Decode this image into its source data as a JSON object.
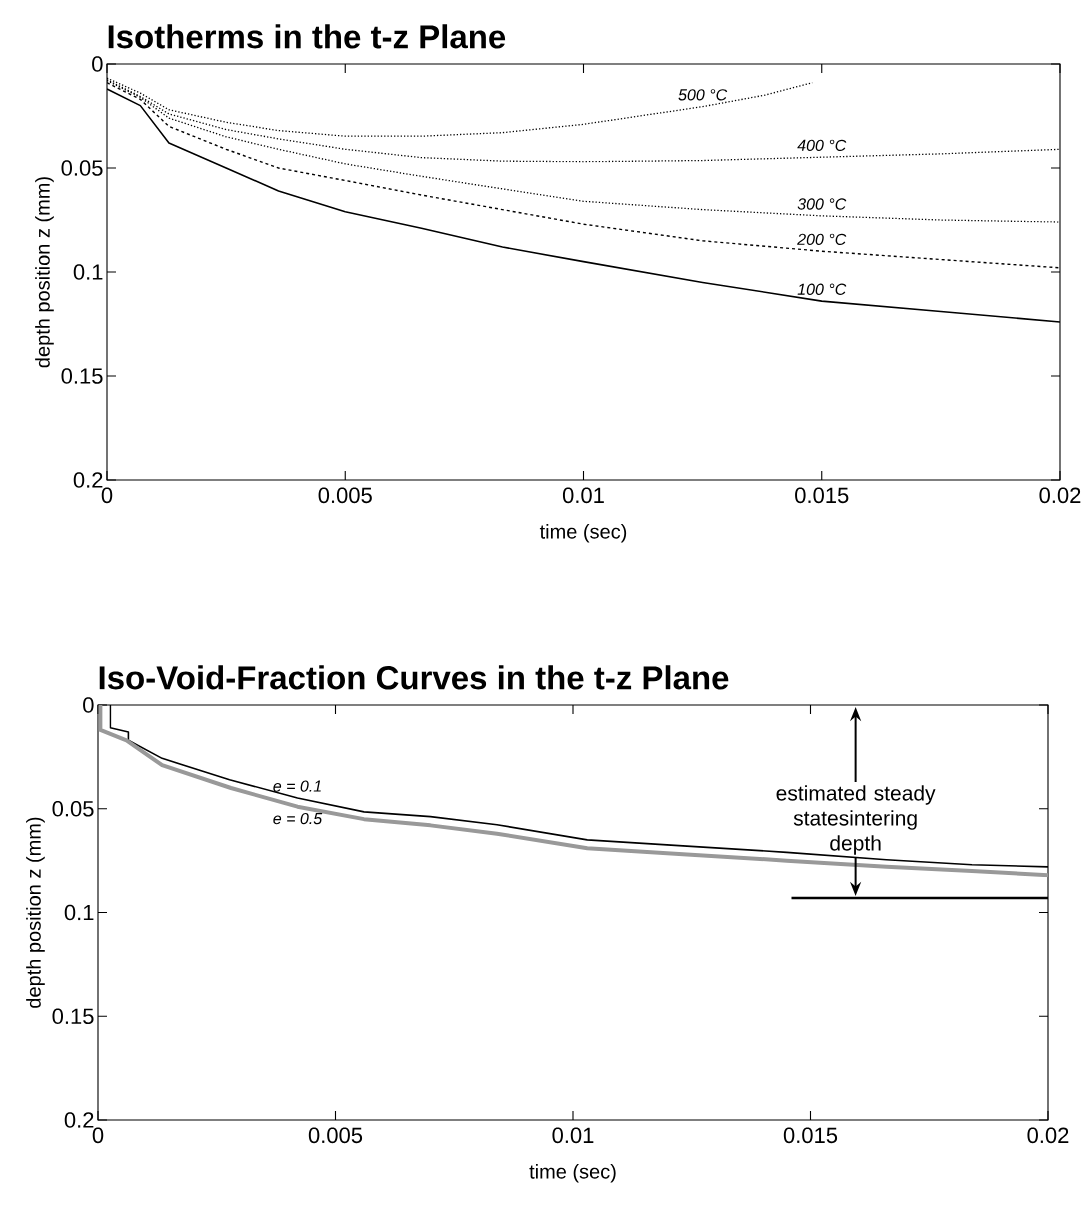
{
  "chart_data": [
    {
      "type": "line",
      "title": "Isotherms in the t-z Plane",
      "xlabel": "time (sec)",
      "ylabel": "depth position z (mm)",
      "xlim": [
        0,
        0.02
      ],
      "ylim": [
        0.2,
        0
      ],
      "xticks": [
        0,
        0.005,
        0.01,
        0.015,
        0.02
      ],
      "yticks": [
        0,
        0.05,
        0.1,
        0.15,
        0.2
      ],
      "series": [
        {
          "name": "100 °C",
          "color": "#000000",
          "line_style": "solid",
          "x": [
            0,
            0.0007,
            0.0013,
            0.0025,
            0.0036,
            0.005,
            0.0066,
            0.0083,
            0.01,
            0.0125,
            0.015,
            0.0175,
            0.02
          ],
          "values": [
            0.012,
            0.02,
            0.038,
            0.05,
            0.061,
            0.071,
            0.079,
            0.088,
            0.095,
            0.105,
            0.114,
            0.119,
            0.124
          ]
        },
        {
          "name": "200 °C",
          "color": "#000000",
          "line_style": "dashed",
          "x": [
            0,
            0.0007,
            0.0013,
            0.0025,
            0.0036,
            0.005,
            0.0066,
            0.0083,
            0.01,
            0.0125,
            0.015,
            0.0175,
            0.02
          ],
          "values": [
            0.009,
            0.017,
            0.03,
            0.041,
            0.05,
            0.056,
            0.063,
            0.07,
            0.077,
            0.085,
            0.09,
            0.094,
            0.098
          ]
        },
        {
          "name": "300 °C",
          "color": "#000000",
          "line_style": "dotted",
          "x": [
            0,
            0.0007,
            0.0013,
            0.0025,
            0.0036,
            0.005,
            0.0066,
            0.0083,
            0.01,
            0.0125,
            0.015,
            0.0175,
            0.02
          ],
          "values": [
            0.008,
            0.016,
            0.026,
            0.035,
            0.041,
            0.048,
            0.054,
            0.06,
            0.066,
            0.07,
            0.073,
            0.075,
            0.076
          ]
        },
        {
          "name": "400 °C",
          "color": "#000000",
          "line_style": "dotted",
          "x": [
            0,
            0.0007,
            0.0013,
            0.0025,
            0.0036,
            0.005,
            0.0066,
            0.0083,
            0.01,
            0.0125,
            0.015,
            0.0175,
            0.02
          ],
          "values": [
            0.0076,
            0.0156,
            0.024,
            0.0315,
            0.036,
            0.041,
            0.045,
            0.0467,
            0.047,
            0.0464,
            0.0448,
            0.0432,
            0.041
          ]
        },
        {
          "name": "500 °C",
          "color": "#000000",
          "line_style": "dotted",
          "x": [
            0,
            0.0007,
            0.0013,
            0.0025,
            0.0036,
            0.005,
            0.0066,
            0.0083,
            0.01,
            0.0125,
            0.0138,
            0.0148
          ],
          "values": [
            0.0068,
            0.014,
            0.022,
            0.028,
            0.032,
            0.0347,
            0.0347,
            0.033,
            0.029,
            0.0205,
            0.015,
            0.009
          ]
        }
      ]
    },
    {
      "type": "line",
      "title": "Iso-Void-Fraction Curves in the t-z Plane",
      "xlabel": "time (sec)",
      "ylabel": "depth position z (mm)",
      "xlim": [
        0,
        0.02
      ],
      "ylim": [
        0.2,
        0
      ],
      "xticks": [
        0,
        0.005,
        0.01,
        0.015,
        0.02
      ],
      "yticks": [
        0,
        0.05,
        0.1,
        0.15,
        0.2
      ],
      "series": [
        {
          "name": "e = 0.1",
          "color": "#000000",
          "line_style": "solid",
          "x": [
            0.00026,
            0.00026,
            0.00064,
            0.00064,
            0.00135,
            0.00277,
            0.0042,
            0.0056,
            0.007,
            0.0084,
            0.0103,
            0.0124,
            0.0145,
            0.0166,
            0.0184,
            0.02
          ],
          "values": [
            0,
            0.011,
            0.013,
            0.017,
            0.0257,
            0.036,
            0.0448,
            0.0515,
            0.0538,
            0.0577,
            0.065,
            0.068,
            0.071,
            0.0746,
            0.077,
            0.078
          ]
        },
        {
          "name": "e = 0.5",
          "color": "#999999",
          "line_style": "solid",
          "x": [
            5e-05,
            5e-05,
            0.0006,
            0.00135,
            0.0028,
            0.0042,
            0.0056,
            0.007,
            0.0084,
            0.0103,
            0.0124,
            0.0145,
            0.0166,
            0.0184,
            0.02
          ],
          "values": [
            0,
            0.012,
            0.017,
            0.029,
            0.04,
            0.049,
            0.055,
            0.058,
            0.062,
            0.069,
            0.072,
            0.075,
            0.078,
            0.08,
            0.082
          ]
        }
      ],
      "ref_lines": [
        {
          "axis": "y",
          "value": 0.093,
          "label": "estimated steady statesintering depth"
        }
      ]
    }
  ]
}
